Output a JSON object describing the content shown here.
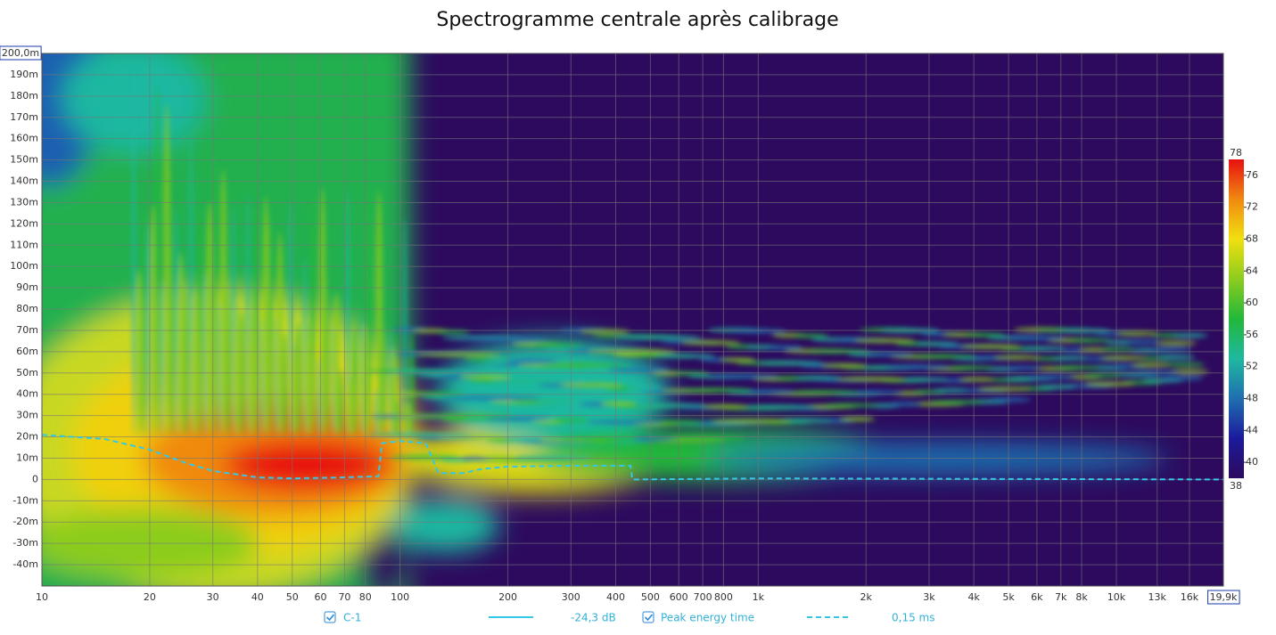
{
  "chart_data": {
    "type": "spectrogram",
    "title": "Spectrogramme centrale après calibrage",
    "x_scale": "log",
    "xlim": [
      10,
      19900
    ],
    "xlim_label": "19,9k",
    "xticks": [
      10,
      20,
      30,
      40,
      50,
      60,
      70,
      80,
      100,
      200,
      300,
      400,
      500,
      600,
      700,
      800,
      {
        "value": 1000,
        "label": "1k"
      },
      {
        "value": 2000,
        "label": "2k"
      },
      {
        "value": 3000,
        "label": "3k"
      },
      {
        "value": 4000,
        "label": "4k"
      },
      {
        "value": 5000,
        "label": "5k"
      },
      {
        "value": 6000,
        "label": "6k"
      },
      {
        "value": 7000,
        "label": "7k"
      },
      {
        "value": 8000,
        "label": "8k"
      },
      {
        "value": 10000,
        "label": "10k"
      },
      {
        "value": 13000,
        "label": "13k"
      },
      {
        "value": 16000,
        "label": "16k"
      }
    ],
    "ylim": [
      -50,
      200
    ],
    "ylim_label": "200,0m",
    "yticks": [
      {
        "value": -40,
        "label": "-40m"
      },
      {
        "value": -30,
        "label": "-30m"
      },
      {
        "value": -20,
        "label": "-20m"
      },
      {
        "value": -10,
        "label": "-10m"
      },
      0,
      {
        "value": 10,
        "label": "10m"
      },
      {
        "value": 20,
        "label": "20m"
      },
      {
        "value": 30,
        "label": "30m"
      },
      {
        "value": 40,
        "label": "40m"
      },
      {
        "value": 50,
        "label": "50m"
      },
      {
        "value": 60,
        "label": "60m"
      },
      {
        "value": 70,
        "label": "70m"
      },
      {
        "value": 80,
        "label": "80m"
      },
      {
        "value": 90,
        "label": "90m"
      },
      {
        "value": 100,
        "label": "100m"
      },
      {
        "value": 110,
        "label": "110m"
      },
      {
        "value": 120,
        "label": "120m"
      },
      {
        "value": 130,
        "label": "130m"
      },
      {
        "value": 140,
        "label": "140m"
      },
      {
        "value": 150,
        "label": "150m"
      },
      {
        "value": 160,
        "label": "160m"
      },
      {
        "value": 170,
        "label": "170m"
      },
      {
        "value": 180,
        "label": "180m"
      },
      {
        "value": 190,
        "label": "190m"
      }
    ],
    "grid": true,
    "clim": [
      38,
      78
    ],
    "cticks": [
      40,
      44,
      48,
      52,
      56,
      60,
      64,
      68,
      72,
      76
    ],
    "colormap": [
      "#2d0a5e",
      "#1c1a9c",
      "#1f6fb0",
      "#1fb8a0",
      "#22b83a",
      "#8ccc1e",
      "#f0e010",
      "#f08a10",
      "#e81010"
    ],
    "measurement": {
      "name": "C-1",
      "level": "-24,3 dB",
      "color": "#33c8e8"
    },
    "x": [
      10,
      15,
      20,
      25,
      30,
      40,
      50,
      70,
      87,
      89,
      100,
      118,
      128,
      150,
      170,
      200,
      300,
      440,
      445,
      1000,
      19900
    ],
    "series": [
      {
        "name": "Peak energy time",
        "legend_value": "0,15 ms",
        "color": "#33c8e8",
        "values": [
          21,
          19,
          14,
          8,
          4,
          1,
          0.5,
          1,
          1.5,
          17,
          18,
          17,
          3,
          3,
          5,
          6,
          6.5,
          6.5,
          0,
          0.5,
          0
        ]
      }
    ]
  }
}
